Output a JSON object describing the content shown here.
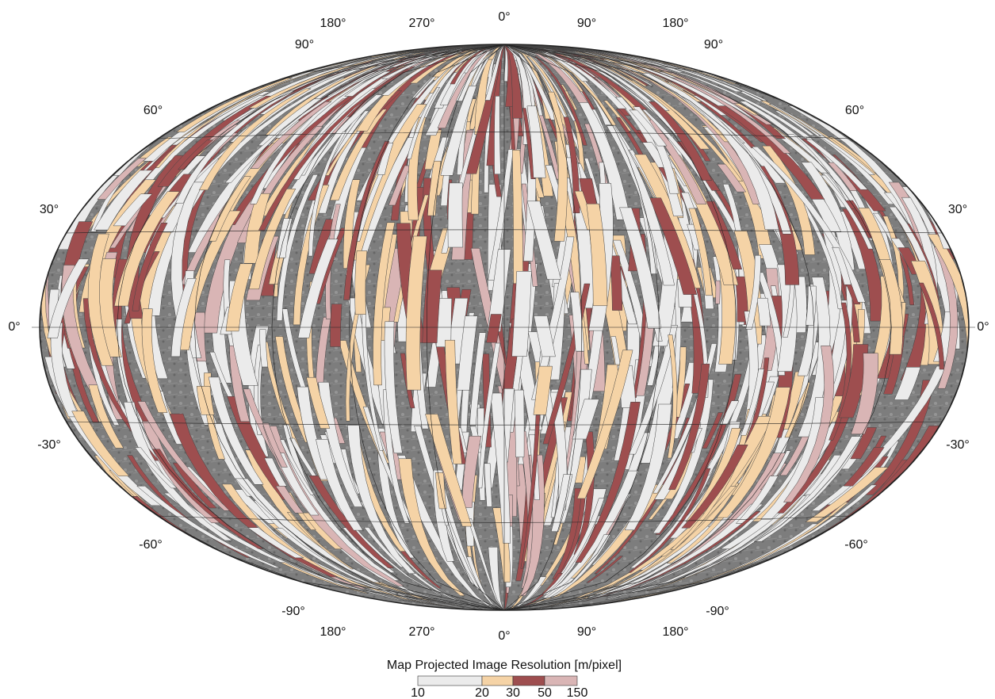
{
  "map": {
    "top_longitudes": [
      "180°",
      "270°",
      "0°",
      "90°",
      "180°"
    ],
    "bottom_longitudes": [
      "180°",
      "270°",
      "0°",
      "90°",
      "180°"
    ],
    "left_latitudes": [
      "90°",
      "60°",
      "30°",
      "0°",
      "-30°",
      "-60°",
      "-90°"
    ],
    "right_latitudes": [
      "90°",
      "60°",
      "30°",
      "0°",
      "-30°",
      "-60°",
      "-90°"
    ]
  },
  "legend": {
    "title": "Map Projected Image Resolution [m/pixel]",
    "ticks": [
      10,
      20,
      30,
      50,
      150
    ],
    "colors": [
      "#ebebeb",
      "#f5d3a6",
      "#9e4e4f",
      "#d9b5b5"
    ]
  }
}
